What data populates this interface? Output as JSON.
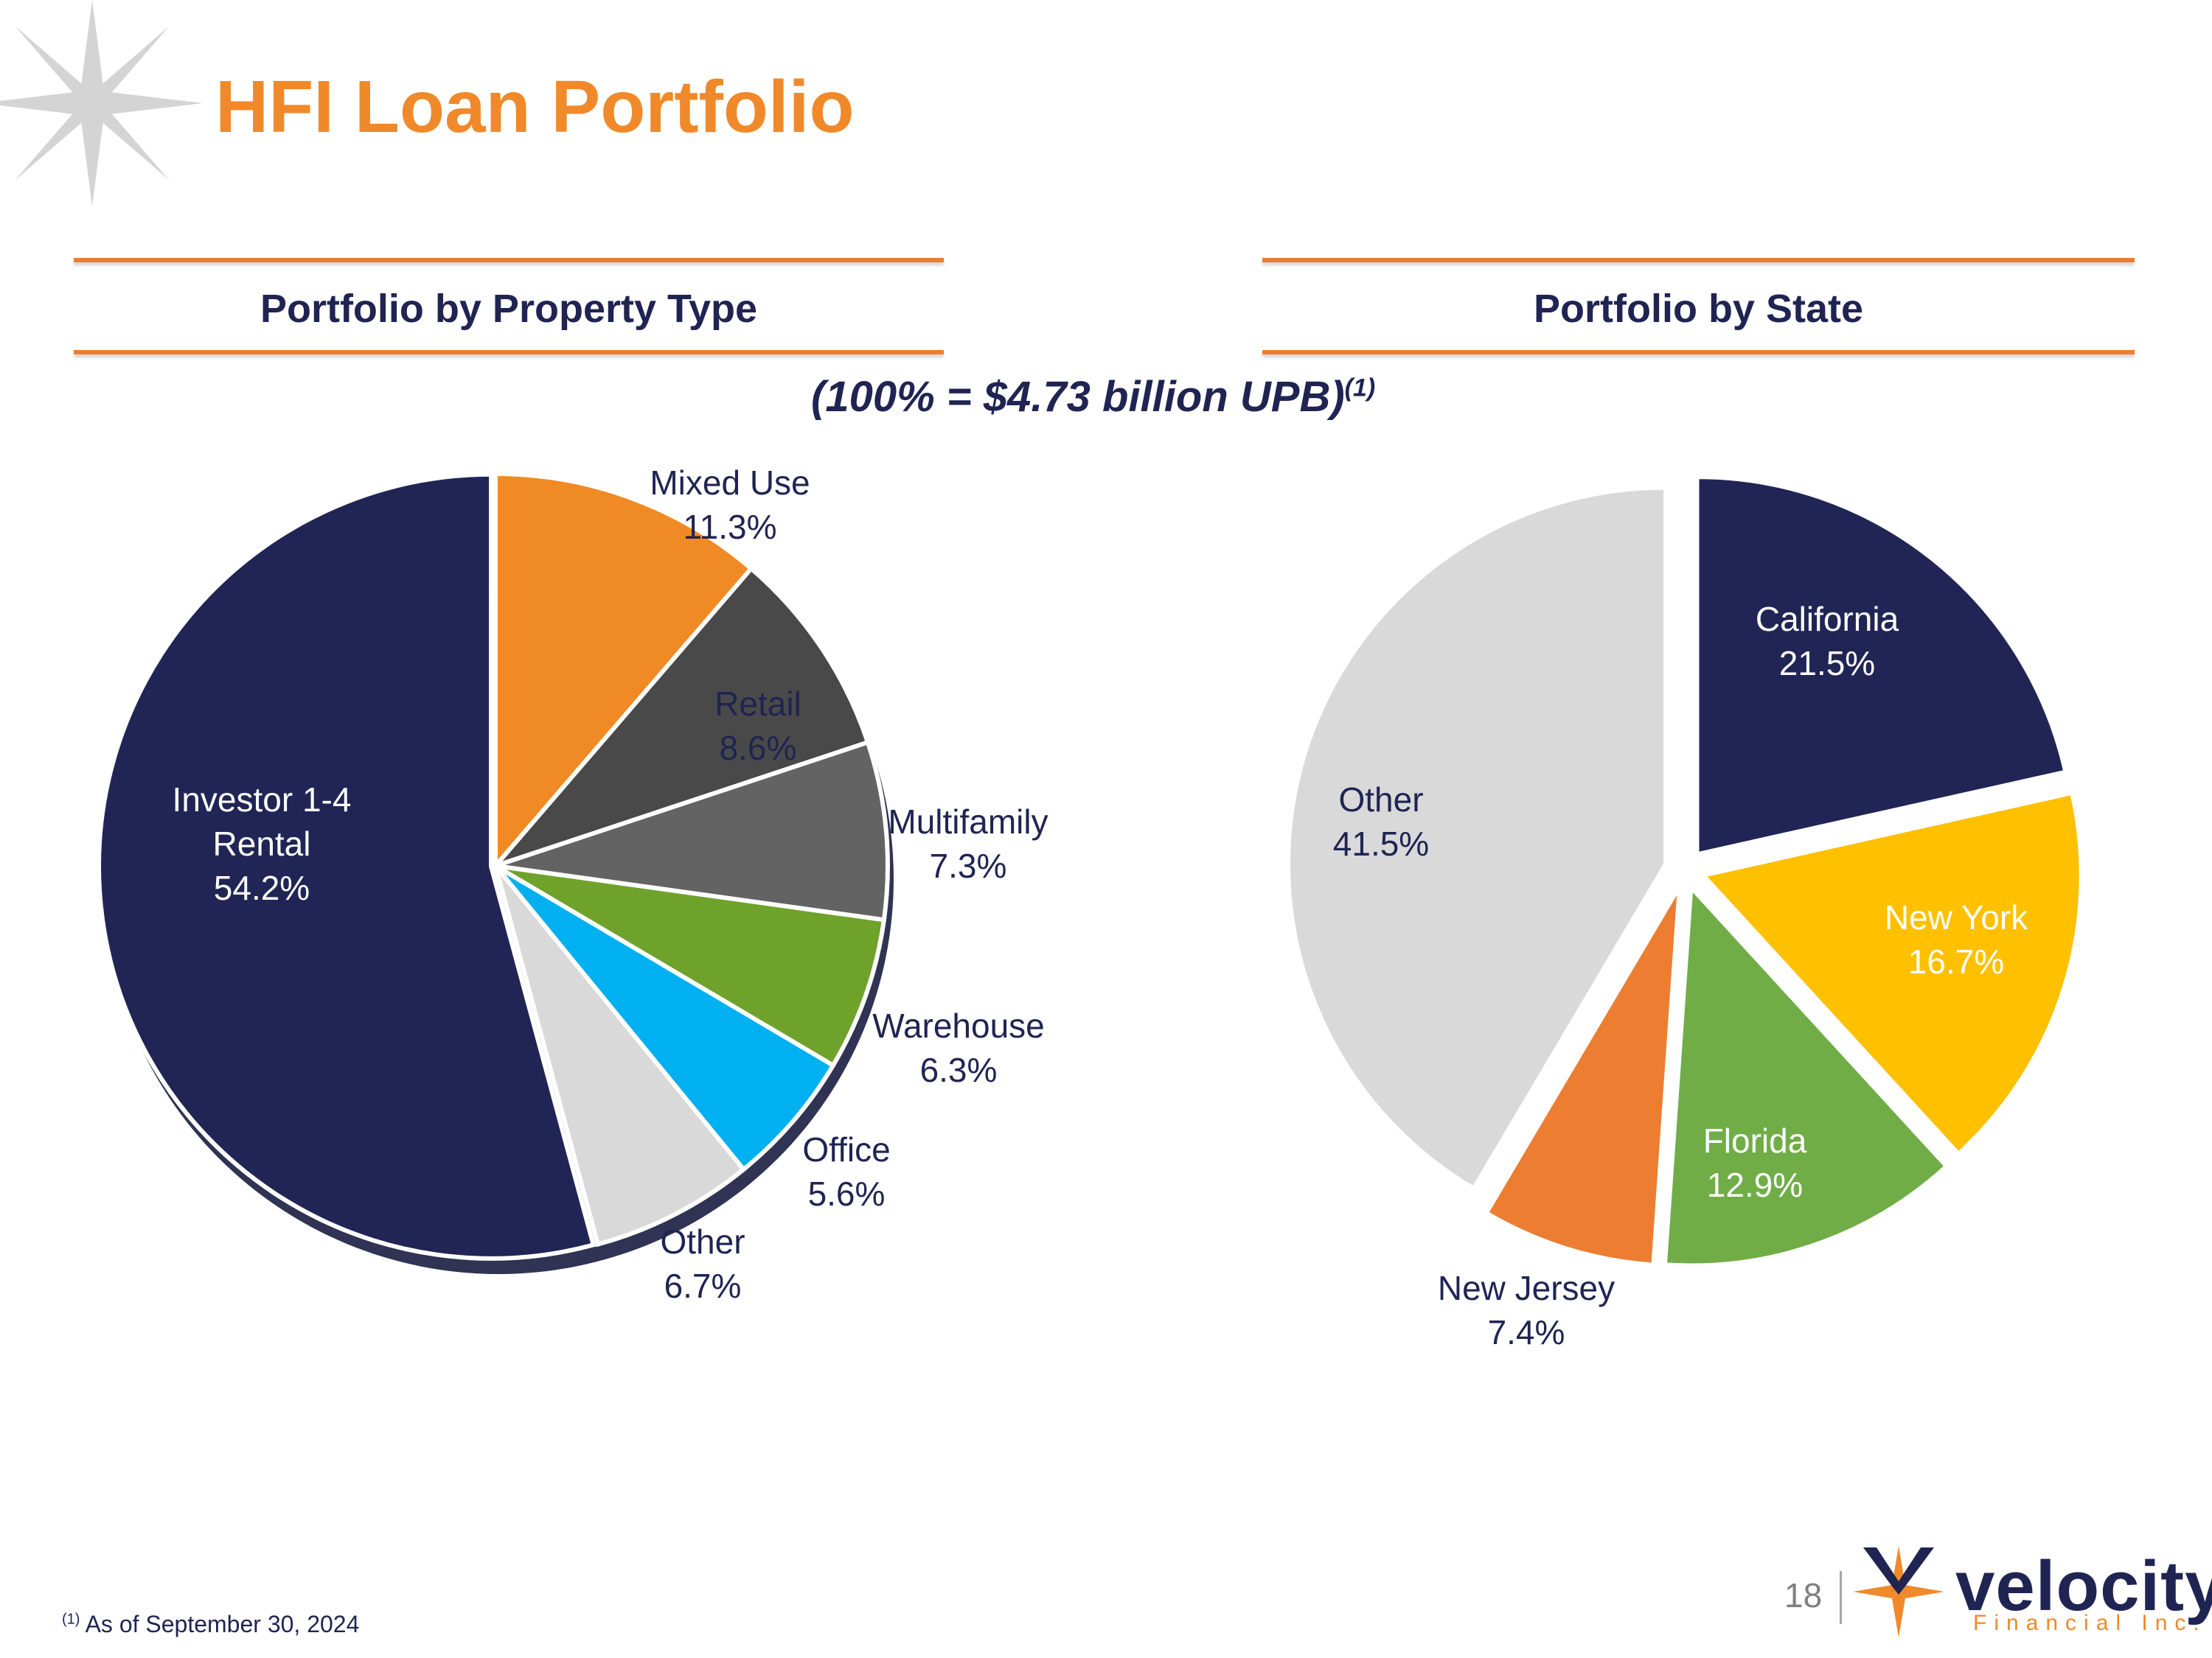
{
  "page": {
    "title": "HFI Loan Portfolio",
    "subtitle": "(100% = $4.73 billion UPB)",
    "subtitle_sup": "(1)",
    "footnote_sup": "(1)",
    "footnote": "As of September 30, 2024",
    "page_number": "18",
    "logo_word": "velocity",
    "logo_sub": "Financial Inc."
  },
  "chart_data": [
    {
      "type": "pie",
      "title": "Portfolio by Property Type",
      "categories": [
        "Mixed Use",
        "Retail",
        "Multifamily",
        "Warehouse",
        "Office",
        "Other",
        "Investor 1-4\nRental"
      ],
      "values": [
        11.3,
        8.6,
        7.3,
        6.3,
        5.6,
        6.7,
        54.2
      ],
      "labels": [
        "11.3%",
        "8.6%",
        "7.3%",
        "6.3%",
        "5.6%",
        "6.7%",
        "54.2%"
      ],
      "colors": [
        "#F08A24",
        "#494949",
        "#636363",
        "#6FA22B",
        "#00B0F0",
        "#D9D9D9",
        "#212555"
      ],
      "label_colors": [
        "#1F2452",
        "#1F2452",
        "#1F2452",
        "#1F2452",
        "#1F2452",
        "#1F2452",
        "#FFFFFF"
      ]
    },
    {
      "type": "pie",
      "title": "Portfolio by State",
      "categories": [
        "California",
        "New York",
        "Florida",
        "New Jersey",
        "Other"
      ],
      "values": [
        21.5,
        16.7,
        12.9,
        7.4,
        41.5
      ],
      "labels": [
        "21.5%",
        "16.7%",
        "12.9%",
        "7.4%",
        "41.5%"
      ],
      "colors": [
        "#212555",
        "#FFC000",
        "#70AD47",
        "#ED7D31",
        "#D9D9D9"
      ],
      "label_colors": [
        "#FFFFFF",
        "#FFFFFF",
        "#FFFFFF",
        "#1F2452",
        "#1F2452"
      ]
    }
  ]
}
